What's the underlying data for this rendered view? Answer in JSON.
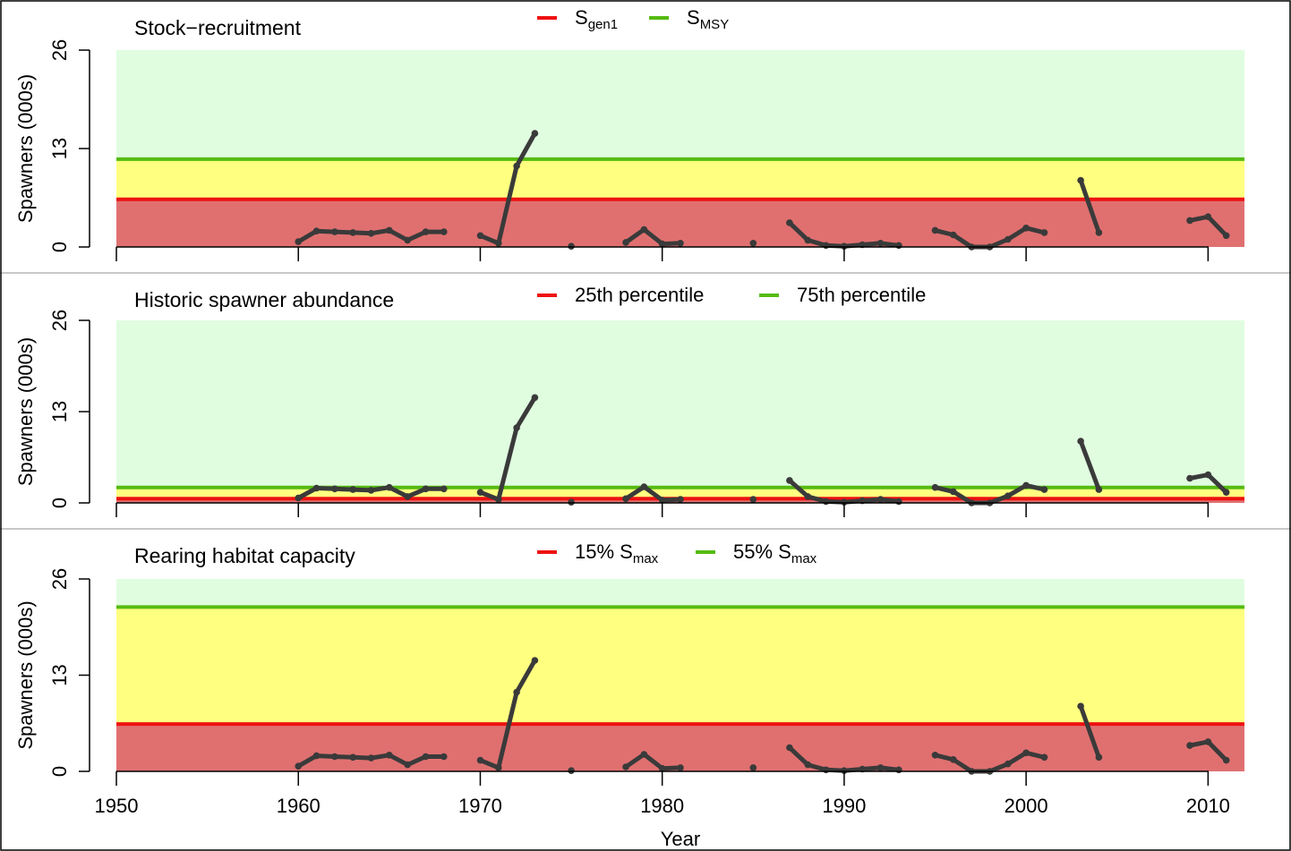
{
  "chart_data": [
    {
      "type": "line",
      "title": "Stock−recruitment",
      "ylabel": "Spawners (000s)",
      "yticks": [
        "0",
        "13",
        "26"
      ],
      "ylim": [
        0,
        26
      ],
      "xlim": [
        1950,
        2012
      ],
      "lower_benchmark": {
        "label_main": "S",
        "label_sub": "gen1",
        "value": 6.3,
        "color": "#ee1111"
      },
      "upper_benchmark": {
        "label_main": "S",
        "label_sub": "MSY",
        "value": 11.6,
        "color": "#55bb11"
      },
      "zones": {
        "red": "#e07070",
        "amber": "#ffff80",
        "green": "#e0fde0"
      },
      "legend_position": "top-center"
    },
    {
      "type": "line",
      "title": "Historic spawner abundance",
      "ylabel": "Spawners (000s)",
      "yticks": [
        "0",
        "13",
        "26"
      ],
      "ylim": [
        0,
        26
      ],
      "xlim": [
        1950,
        2012
      ],
      "lower_benchmark": {
        "label_main": "25th percentile",
        "label_sub": "",
        "value": 0.6,
        "color": "#ee1111"
      },
      "upper_benchmark": {
        "label_main": "75th percentile",
        "label_sub": "",
        "value": 2.2,
        "color": "#55bb11"
      },
      "zones": {
        "red": "#e07070",
        "amber": "#ffff80",
        "green": "#e0fde0"
      },
      "legend_position": "top-center"
    },
    {
      "type": "line",
      "title": "Rearing habitat capacity",
      "ylabel": "Spawners (000s)",
      "yticks": [
        "0",
        "13",
        "26"
      ],
      "ylim": [
        0,
        26
      ],
      "xlim": [
        1950,
        2012
      ],
      "lower_benchmark": {
        "label_main": "15% S",
        "label_sub": "max",
        "value": 6.4,
        "color": "#ee1111"
      },
      "upper_benchmark": {
        "label_main": "55% S",
        "label_sub": "max",
        "value": 22.2,
        "color": "#55bb11"
      },
      "zones": {
        "red": "#e07070",
        "amber": "#ffff80",
        "green": "#e0fde0"
      },
      "legend_position": "top-center"
    }
  ],
  "series_segments": [
    [
      [
        1960,
        0.7
      ],
      [
        1961,
        2.1
      ],
      [
        1962,
        2.0
      ],
      [
        1963,
        1.9
      ],
      [
        1964,
        1.8
      ],
      [
        1965,
        2.2
      ],
      [
        1966,
        0.9
      ],
      [
        1967,
        2.0
      ],
      [
        1968,
        2.0
      ]
    ],
    [
      [
        1970,
        1.5
      ],
      [
        1971,
        0.5
      ],
      [
        1972,
        10.7
      ],
      [
        1973,
        15.0
      ]
    ],
    [
      [
        1975,
        0.1
      ]
    ],
    [
      [
        1978,
        0.6
      ],
      [
        1979,
        2.3
      ],
      [
        1980,
        0.4
      ],
      [
        1981,
        0.5
      ]
    ],
    [
      [
        1985,
        0.5
      ]
    ],
    [
      [
        1987,
        3.2
      ],
      [
        1988,
        0.9
      ],
      [
        1989,
        0.2
      ],
      [
        1990,
        0.1
      ],
      [
        1991,
        0.3
      ],
      [
        1992,
        0.5
      ],
      [
        1993,
        0.2
      ]
    ],
    [
      [
        1995,
        2.2
      ],
      [
        1996,
        1.6
      ],
      [
        1997,
        0.0
      ],
      [
        1998,
        0.0
      ],
      [
        1999,
        1.0
      ],
      [
        2000,
        2.5
      ],
      [
        2001,
        1.9
      ]
    ],
    [
      [
        2003,
        8.8
      ],
      [
        2004,
        1.9
      ]
    ],
    [
      [
        2009,
        3.5
      ],
      [
        2010,
        4.0
      ],
      [
        2011,
        1.5
      ]
    ]
  ],
  "x_axis": {
    "label": "Year",
    "ticks": [
      "1950",
      "1960",
      "1970",
      "1980",
      "1990",
      "2000",
      "2010"
    ]
  }
}
